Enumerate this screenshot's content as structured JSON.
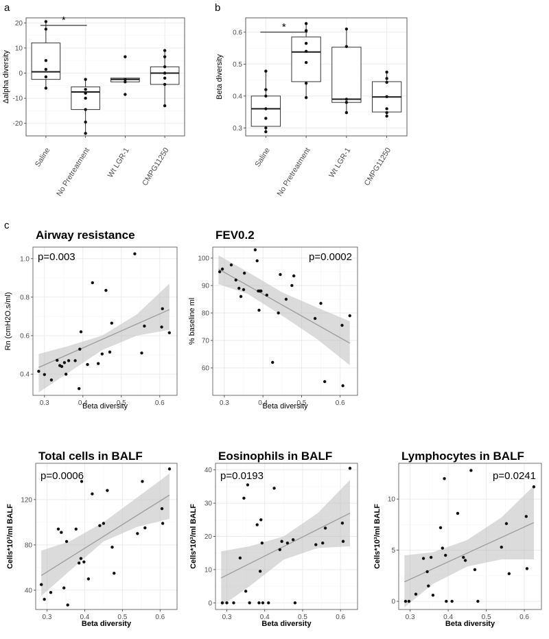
{
  "panel_letters": {
    "a": "a",
    "b": "b",
    "c": "c"
  },
  "chart_data": [
    {
      "id": "a",
      "type": "box",
      "title": "",
      "ylabel": "Δalpha diversity",
      "xlabel": "",
      "categories": [
        "Saline",
        "No Pretreatment",
        "Wt LGR-1",
        "CMPG11250"
      ],
      "category_labels": [
        "Saline",
        "No Pretreatment",
        "Wt LGR-1",
        "CMPG11250"
      ],
      "ylim": [
        -25,
        22
      ],
      "yticks": [
        -20,
        -10,
        0,
        10,
        20
      ],
      "yticklabels": [
        "-20",
        "-10",
        "0",
        "10",
        "20"
      ],
      "boxes": [
        {
          "q1": -2.5,
          "median": 0.5,
          "q3": 12,
          "lo": -6,
          "hi": 20.5
        },
        {
          "q1": -14.5,
          "median": -7.5,
          "q3": -5.5,
          "lo": -24,
          "hi": -2.5
        },
        {
          "q1": -3.5,
          "median": -2.5,
          "q3": -2,
          "lo": -3.5,
          "hi": -2
        },
        {
          "q1": -4.5,
          "median": 0,
          "q3": 2.5,
          "lo": -13,
          "hi": 9
        }
      ],
      "points": [
        [
          20.5,
          17.5,
          5,
          1.5,
          -1.5,
          -6
        ],
        [
          -2.5,
          -6.5,
          -8,
          -10,
          -14.5,
          -19.5,
          -24
        ],
        [
          6.5,
          -2.5,
          -3.5,
          -8.5
        ],
        [
          9,
          6.5,
          2.5,
          0,
          -2,
          -4.5,
          -13
        ]
      ],
      "significance": {
        "from": 0,
        "to": 1,
        "y": 19,
        "label": "*"
      }
    },
    {
      "id": "b",
      "type": "box",
      "title": "",
      "ylabel": "Beta diversity",
      "xlabel": "",
      "categories": [
        "Saline",
        "No Pretreatment",
        "Wt LGR-1",
        "CMPG11250"
      ],
      "category_labels": [
        "Saline",
        "No Pretreatment",
        "Wt LGR-1",
        "CMPG11250"
      ],
      "ylim": [
        0.275,
        0.645
      ],
      "yticks": [
        0.3,
        0.4,
        0.5,
        0.6
      ],
      "yticklabels": [
        "0.3",
        "0.4",
        "0.5",
        "0.6"
      ],
      "boxes": [
        {
          "q1": 0.305,
          "median": 0.36,
          "q3": 0.4,
          "lo": 0.285,
          "hi": 0.48
        },
        {
          "q1": 0.445,
          "median": 0.538,
          "q3": 0.585,
          "lo": 0.395,
          "hi": 0.628
        },
        {
          "q1": 0.38,
          "median": 0.39,
          "q3": 0.553,
          "lo": 0.348,
          "hi": 0.61
        },
        {
          "q1": 0.35,
          "median": 0.397,
          "q3": 0.445,
          "lo": 0.335,
          "hi": 0.475
        }
      ],
      "points": [
        [
          0.478,
          0.42,
          0.4,
          0.36,
          0.33,
          0.3,
          0.288
        ],
        [
          0.627,
          0.605,
          0.565,
          0.54,
          0.505,
          0.44,
          0.395
        ],
        [
          0.61,
          0.555,
          0.39,
          0.38,
          0.348
        ],
        [
          0.475,
          0.455,
          0.443,
          0.398,
          0.36,
          0.348,
          0.337
        ]
      ],
      "significance": {
        "from": 0,
        "to": 1,
        "y": 0.6,
        "label": "*"
      }
    },
    {
      "id": "c1",
      "type": "scatter",
      "title": "Airway resistance",
      "annotation": "p=0.003",
      "ylabel": "Rn (cmH2O.s/ml)",
      "xlabel": "Beta diversity",
      "xlim": [
        0.27,
        0.645
      ],
      "ylim": [
        0.29,
        1.06
      ],
      "xticks": [
        0.3,
        0.4,
        0.5,
        0.6
      ],
      "xticklabels": [
        "0.3",
        "0.4",
        "0.5",
        "0.6"
      ],
      "yticks": [
        0.4,
        0.6,
        0.8,
        1.0
      ],
      "yticklabels": [
        "0.4",
        "0.6",
        "0.8",
        "1.0"
      ],
      "x": [
        0.285,
        0.3,
        0.318,
        0.333,
        0.34,
        0.345,
        0.352,
        0.356,
        0.363,
        0.38,
        0.39,
        0.392,
        0.395,
        0.412,
        0.425,
        0.44,
        0.45,
        0.46,
        0.47,
        0.475,
        0.535,
        0.553,
        0.56,
        0.605,
        0.607,
        0.625
      ],
      "y": [
        0.415,
        0.398,
        0.37,
        0.472,
        0.445,
        0.44,
        0.46,
        0.4,
        0.47,
        0.47,
        0.325,
        0.53,
        0.62,
        0.45,
        0.875,
        0.455,
        0.505,
        0.835,
        0.515,
        0.665,
        1.025,
        0.51,
        0.65,
        0.645,
        0.74,
        0.615
      ],
      "fit": {
        "x": [
          0.285,
          0.625
        ],
        "y": [
          0.435,
          0.735
        ]
      },
      "band_upper": [
        [
          0.285,
          0.505
        ],
        [
          0.36,
          0.545
        ],
        [
          0.45,
          0.6
        ],
        [
          0.54,
          0.71
        ],
        [
          0.625,
          0.87
        ]
      ],
      "band_lower": [
        [
          0.285,
          0.305
        ],
        [
          0.36,
          0.405
        ],
        [
          0.45,
          0.525
        ],
        [
          0.54,
          0.6
        ],
        [
          0.625,
          0.63
        ]
      ]
    },
    {
      "id": "c2",
      "type": "scatter",
      "title": "FEV0.2",
      "annotation": "p=0.0002",
      "ylabel": "% baseline ml",
      "xlabel": "Beta diversity",
      "xlim": [
        0.27,
        0.645
      ],
      "ylim": [
        50,
        104
      ],
      "xticks": [
        0.3,
        0.4,
        0.5,
        0.6
      ],
      "xticklabels": [
        "0.3",
        "0.4",
        "0.5",
        "0.6"
      ],
      "yticks": [
        60,
        70,
        80,
        90,
        100
      ],
      "yticklabels": [
        "60",
        "70",
        "80",
        "90",
        "100"
      ],
      "x": [
        0.288,
        0.295,
        0.318,
        0.33,
        0.338,
        0.343,
        0.35,
        0.352,
        0.38,
        0.385,
        0.388,
        0.39,
        0.392,
        0.395,
        0.41,
        0.425,
        0.44,
        0.445,
        0.46,
        0.475,
        0.48,
        0.535,
        0.55,
        0.56,
        0.605,
        0.607,
        0.625
      ],
      "y": [
        95,
        96,
        97.5,
        92,
        89,
        86,
        88.5,
        94.5,
        103,
        99,
        88,
        81,
        88,
        88,
        86.5,
        62,
        80,
        94,
        85,
        90,
        93.5,
        78,
        83.5,
        55,
        75.5,
        53.5,
        79
      ],
      "fit": {
        "x": [
          0.285,
          0.625
        ],
        "y": [
          96,
          69
        ]
      },
      "band_upper": [
        [
          0.285,
          101
        ],
        [
          0.36,
          95
        ],
        [
          0.45,
          87.5
        ],
        [
          0.54,
          82
        ],
        [
          0.625,
          77
        ]
      ],
      "band_lower": [
        [
          0.285,
          90.5
        ],
        [
          0.36,
          87
        ],
        [
          0.45,
          79
        ],
        [
          0.54,
          70.5
        ],
        [
          0.625,
          61
        ]
      ]
    },
    {
      "id": "c3",
      "type": "scatter",
      "title": "Total cells in BALF",
      "annotation": "p=0.0006",
      "ylabel": "Cells*10³/ml BALF",
      "xlabel": "Beta diversity",
      "xlim": [
        0.27,
        0.645
      ],
      "ylim": [
        23,
        152
      ],
      "xticks": [
        0.3,
        0.4,
        0.5,
        0.6
      ],
      "xticklabels": [
        "0.3",
        "0.4",
        "0.5",
        "0.6"
      ],
      "yticks": [
        40,
        80,
        120
      ],
      "yticklabels": [
        "40",
        "80",
        "120"
      ],
      "x": [
        0.285,
        0.293,
        0.31,
        0.33,
        0.338,
        0.345,
        0.352,
        0.355,
        0.377,
        0.385,
        0.39,
        0.392,
        0.398,
        0.41,
        0.42,
        0.44,
        0.45,
        0.46,
        0.473,
        0.478,
        0.54,
        0.553,
        0.56,
        0.605,
        0.607,
        0.625
      ],
      "y": [
        45,
        32,
        38,
        94,
        91,
        42,
        83,
        27,
        94,
        64,
        68,
        136,
        65,
        50,
        125,
        97,
        99,
        128,
        78,
        55,
        90,
        136,
        95,
        112,
        99,
        147
      ],
      "fit": {
        "x": [
          0.285,
          0.625
        ],
        "y": [
          53,
          124
        ]
      },
      "band_upper": [
        [
          0.285,
          75
        ],
        [
          0.36,
          83
        ],
        [
          0.45,
          100
        ],
        [
          0.54,
          122
        ],
        [
          0.625,
          143
        ]
      ],
      "band_lower": [
        [
          0.285,
          35
        ],
        [
          0.36,
          57
        ],
        [
          0.45,
          83
        ],
        [
          0.54,
          96
        ],
        [
          0.625,
          103
        ]
      ]
    },
    {
      "id": "c4",
      "type": "scatter",
      "title": "Eosinophils in BALF",
      "annotation": "p=0.0193",
      "ylabel": "Cells*10³/ml BALF",
      "xlabel": "Beta diversity",
      "xlim": [
        0.27,
        0.645
      ],
      "ylim": [
        -2,
        42
      ],
      "xticks": [
        0.3,
        0.4,
        0.5,
        0.6
      ],
      "xticklabels": [
        "0.3",
        "0.4",
        "0.5",
        "0.6"
      ],
      "yticks": [
        0,
        10,
        20,
        30,
        40
      ],
      "yticklabels": [
        "0",
        "10",
        "20",
        "30",
        "40"
      ],
      "x": [
        0.288,
        0.3,
        0.318,
        0.335,
        0.345,
        0.35,
        0.355,
        0.36,
        0.38,
        0.385,
        0.388,
        0.39,
        0.393,
        0.395,
        0.41,
        0.425,
        0.44,
        0.445,
        0.46,
        0.475,
        0.48,
        0.535,
        0.553,
        0.56,
        0.605,
        0.607,
        0.625
      ],
      "y": [
        0,
        0,
        0,
        13.5,
        31.5,
        3.5,
        35.5,
        0,
        23.5,
        0,
        9.5,
        25,
        18,
        0,
        0,
        34.5,
        16,
        18.5,
        18,
        19,
        0,
        17.5,
        18,
        22.5,
        24,
        18.5,
        40.5
      ],
      "fit": {
        "x": [
          0.285,
          0.625
        ],
        "y": [
          7.5,
          27
        ]
      },
      "band_upper": [
        [
          0.285,
          15.5
        ],
        [
          0.36,
          17
        ],
        [
          0.45,
          20
        ],
        [
          0.54,
          27
        ],
        [
          0.625,
          37
        ]
      ],
      "band_lower": [
        [
          0.285,
          -1
        ],
        [
          0.36,
          5
        ],
        [
          0.45,
          13
        ],
        [
          0.54,
          16.5
        ],
        [
          0.625,
          17
        ]
      ]
    },
    {
      "id": "c5",
      "type": "scatter",
      "title": "Lymphocytes in BALF",
      "annotation": "p=0.0241",
      "ylabel": "Cells*10³/ml BALF",
      "xlabel": "Beta diversity",
      "xlim": [
        0.27,
        0.645
      ],
      "ylim": [
        -0.8,
        13.5
      ],
      "xticks": [
        0.3,
        0.4,
        0.5,
        0.6
      ],
      "xticklabels": [
        "0.3",
        "0.4",
        "0.5",
        "0.6"
      ],
      "yticks": [
        0,
        5,
        10
      ],
      "yticklabels": [
        "0",
        "5",
        "10"
      ],
      "x": [
        0.288,
        0.297,
        0.315,
        0.335,
        0.345,
        0.348,
        0.355,
        0.36,
        0.38,
        0.385,
        0.39,
        0.393,
        0.395,
        0.41,
        0.425,
        0.44,
        0.445,
        0.46,
        0.47,
        0.478,
        0.54,
        0.553,
        0.56,
        0.605,
        0.607,
        0.625
      ],
      "y": [
        0,
        0,
        0.7,
        4.2,
        2.9,
        1.5,
        4.3,
        0.6,
        7.2,
        5.2,
        12.0,
        4.5,
        0,
        0,
        8.6,
        4.3,
        4.0,
        12.8,
        3.1,
        0,
        5.3,
        7.6,
        2.7,
        8.3,
        3.2,
        11.2
      ],
      "fit": {
        "x": [
          0.285,
          0.625
        ],
        "y": [
          1.9,
          7.7
        ]
      },
      "band_upper": [
        [
          0.285,
          4.5
        ],
        [
          0.36,
          4.8
        ],
        [
          0.45,
          6.0
        ],
        [
          0.54,
          8.2
        ],
        [
          0.625,
          11.3
        ]
      ],
      "band_lower": [
        [
          0.285,
          -0.6
        ],
        [
          0.36,
          1.7
        ],
        [
          0.45,
          3.4
        ],
        [
          0.54,
          4.1
        ],
        [
          0.625,
          4.1
        ]
      ]
    }
  ]
}
